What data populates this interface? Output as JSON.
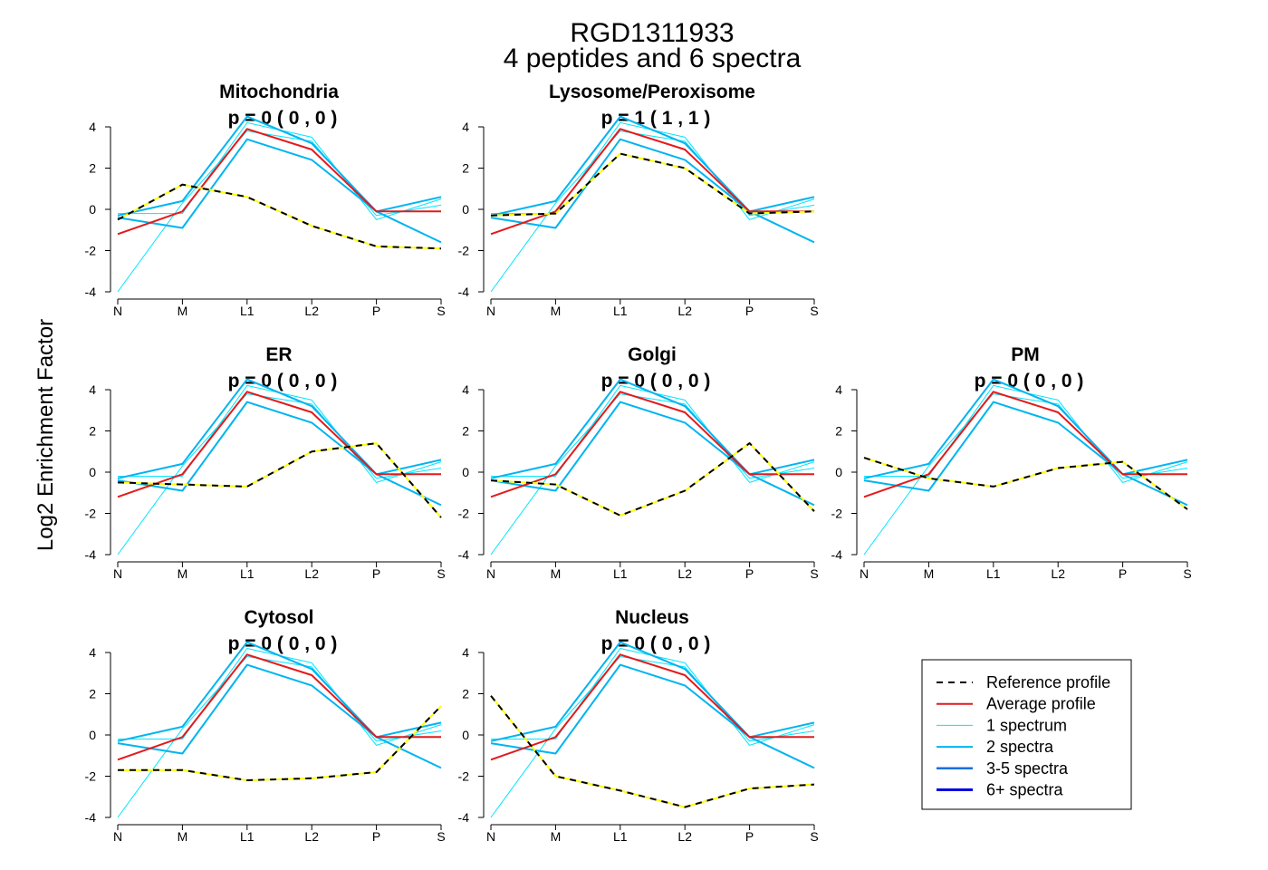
{
  "window_title": "RGD1311933",
  "figure": {
    "title_line1": "RGD1311933",
    "title_line2": "4  peptides and  6  spectra",
    "ylabel": "Log2 Enrichment Factor"
  },
  "chart_data": {
    "type": "line",
    "categories": [
      "N",
      "M",
      "L1",
      "L2",
      "P",
      "S"
    ],
    "ylim": [
      -4,
      4
    ],
    "yticks": [
      -4,
      -2,
      0,
      2,
      4
    ],
    "grid": false,
    "legend_position": "bottom-right",
    "colors": {
      "reference": "#000000",
      "reference_dash": "#ffff00",
      "average": "#e31a1c",
      "one_spectrum": "#00e5ff",
      "two_spectra": "#00b4f0",
      "three_five_spectra": "#1a6fdc",
      "six_plus_spectra": "#0000e0"
    },
    "peptide_series": [
      {
        "spectra": 1,
        "values": [
          -4.0,
          0.3,
          3.8,
          3.3,
          -0.3,
          0.2
        ]
      },
      {
        "spectra": 1,
        "values": [
          -0.2,
          -0.2,
          4.2,
          3.5,
          -0.5,
          0.5
        ]
      },
      {
        "spectra": 2,
        "values": [
          -0.3,
          0.4,
          4.5,
          3.2,
          -0.1,
          -1.6
        ]
      },
      {
        "spectra": 2,
        "values": [
          -0.4,
          -0.9,
          3.4,
          2.4,
          -0.1,
          0.6
        ]
      }
    ],
    "average": [
      -1.2,
      -0.1,
      3.9,
      2.9,
      -0.1,
      -0.1
    ],
    "panels": [
      {
        "name": "Mitochondria",
        "p_text": "p =  0  ( 0 ,  0 )",
        "reference": [
          -0.5,
          1.2,
          0.6,
          -0.8,
          -1.8,
          -1.9
        ]
      },
      {
        "name": "Lysosome/Peroxisome",
        "p_text": "p =  1  ( 1 ,  1 )",
        "reference": [
          -0.3,
          -0.2,
          2.7,
          2.0,
          -0.2,
          -0.1
        ]
      },
      {
        "name": "ER",
        "p_text": "p =  0  ( 0 ,  0 )",
        "reference": [
          -0.5,
          -0.6,
          -0.7,
          1.0,
          1.4,
          -2.2
        ]
      },
      {
        "name": "Golgi",
        "p_text": "p =  0  ( 0 ,  0 )",
        "reference": [
          -0.4,
          -0.6,
          -2.1,
          -0.9,
          1.4,
          -1.9
        ]
      },
      {
        "name": "PM",
        "p_text": "p =  0  ( 0 ,  0 )",
        "reference": [
          0.7,
          -0.3,
          -0.7,
          0.2,
          0.5,
          -1.8
        ]
      },
      {
        "name": "Cytosol",
        "p_text": "p =  0  ( 0 ,  0 )",
        "reference": [
          -1.7,
          -1.7,
          -2.2,
          -2.1,
          -1.8,
          1.4
        ]
      },
      {
        "name": "Nucleus",
        "p_text": "p =  0  ( 0 ,  0 )",
        "reference": [
          1.9,
          -2.0,
          -2.7,
          -3.5,
          -2.6,
          -2.4
        ]
      }
    ],
    "legend": [
      {
        "label": "Reference profile",
        "style": "reference"
      },
      {
        "label": "Average profile",
        "style": "average"
      },
      {
        "label": "1 spectrum",
        "style": "one_spectrum"
      },
      {
        "label": "2 spectra",
        "style": "two_spectra"
      },
      {
        "label": "3-5 spectra",
        "style": "three_five_spectra"
      },
      {
        "label": "6+ spectra",
        "style": "six_plus_spectra"
      }
    ]
  }
}
